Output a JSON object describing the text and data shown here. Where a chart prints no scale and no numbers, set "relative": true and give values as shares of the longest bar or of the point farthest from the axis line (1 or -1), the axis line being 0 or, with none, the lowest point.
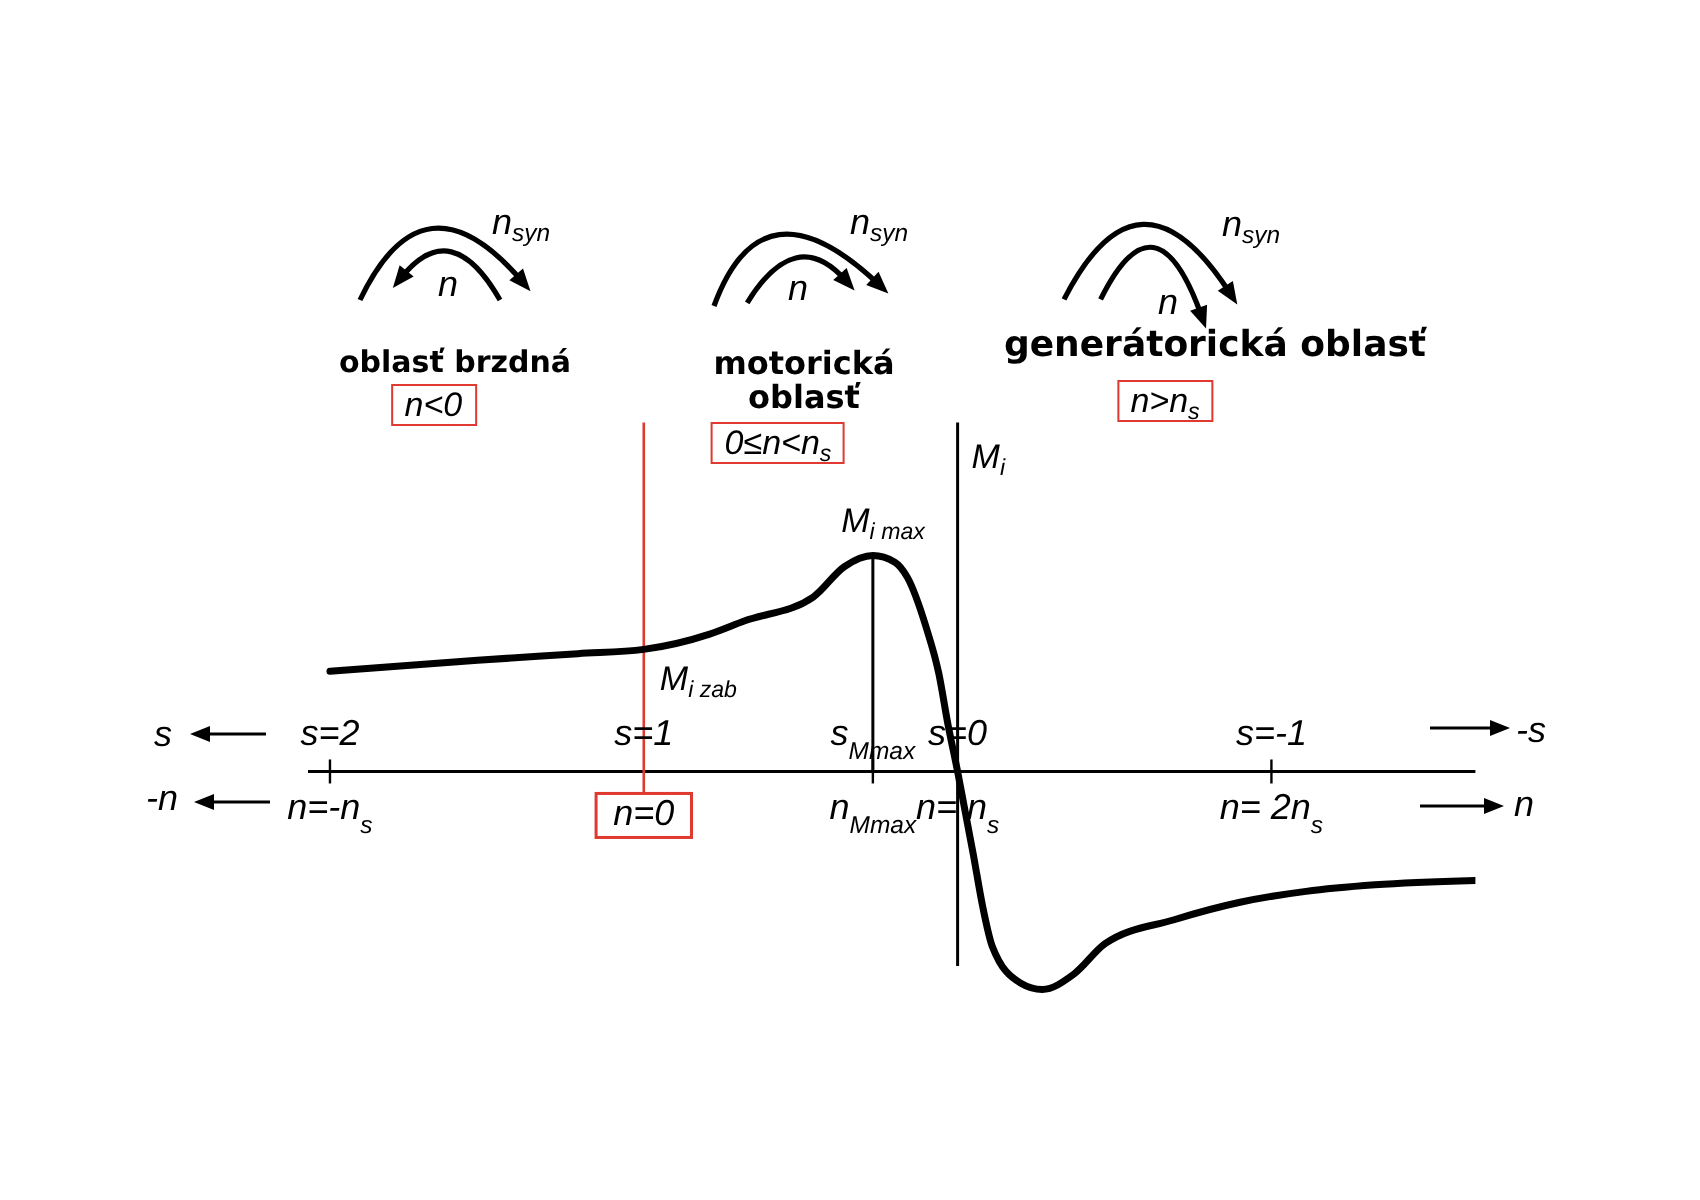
{
  "chart_data": {
    "type": "line",
    "relative": true,
    "ylabel": "M$_{i}$",
    "xlim": [
      -1.07,
      2.65
    ],
    "xticks": [
      {
        "value": -1,
        "label": "n=-n$_{s}$"
      },
      {
        "value": 0,
        "label": "n=0"
      },
      {
        "value": 0.73,
        "label": "n$_{Mmax}$"
      },
      {
        "value": 1,
        "label": "n= n$_{s}$"
      },
      {
        "value": 2,
        "label": "n= 2n$_{s}$"
      }
    ],
    "x2lim": [
      2.07,
      -1.65
    ],
    "x2ticks": [
      {
        "value": 2,
        "label": "s=2"
      },
      {
        "value": 1,
        "label": "s=1"
      },
      {
        "value": 0.27,
        "label": "s$_{Mmax}$"
      },
      {
        "value": 0,
        "label": "s=0"
      },
      {
        "value": -1,
        "label": "s=-1"
      }
    ],
    "series": [
      {
        "color": "#000000",
        "x": [
          -1,
          -0.53,
          -0.21,
          0,
          0.21,
          0.32,
          0.54,
          0.64,
          0.73,
          0.8,
          0.84,
          0.9,
          0.94,
          0.97,
          1,
          1.05,
          1.08,
          1.11,
          1.2,
          1.27,
          1.37,
          1.47,
          1.69,
          1.9,
          2.11,
          2.33,
          2.65
        ],
        "values": [
          0.46,
          0.51,
          0.54,
          0.56,
          0.63,
          0.69,
          0.8,
          0.94,
          0.99,
          0.96,
          0.89,
          0.66,
          0.45,
          0.21,
          0,
          -0.38,
          -0.62,
          -0.8,
          -0.97,
          -1,
          -0.93,
          -0.79,
          -0.68,
          -0.6,
          -0.55,
          -0.52,
          -0.5
        ]
      },
      {
        "color": "#000000",
        "x": [
          0.73,
          0.73
        ],
        "values": [
          0,
          0.99
        ]
      }
    ],
    "ref_lines": [
      {
        "axis": "x",
        "value": 0,
        "color": "#e0392f"
      }
    ],
    "annotations": [
      "n$_{syn}$",
      "n",
      "oblasť brzdná",
      "n<0",
      "n$_{syn}$",
      "n",
      "motorická oblasť",
      "0≤n<n$_{s}$",
      "n$_{syn}$",
      "n",
      "generátorická oblasť",
      "n>n$_{s}$",
      "s",
      "-n",
      "-s",
      "n",
      {
        "text": "M$_{i max}$",
        "x": 0.73,
        "y": 0.99
      },
      {
        "text": "M$_{i zab}$",
        "x": 0,
        "y": 0.56
      }
    ]
  }
}
